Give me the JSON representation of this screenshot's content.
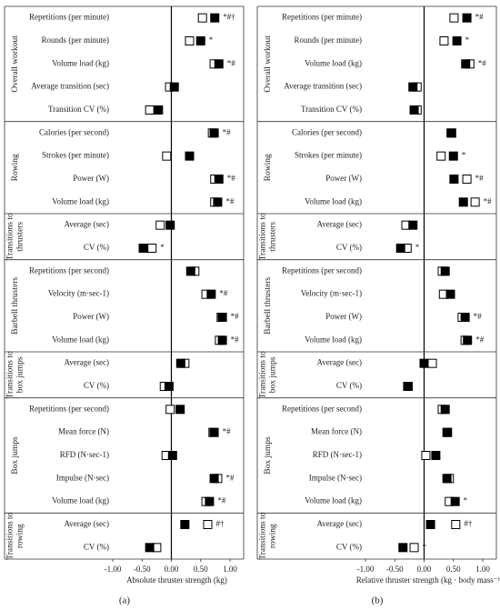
{
  "charts": [
    {
      "type": "dot",
      "panel_label": "(a)",
      "xlabel": "Absolute thruster strength (kg)",
      "xlim": [
        -1,
        1
      ],
      "xticks": [
        {
          "value": -1,
          "label": "-1.00"
        },
        {
          "value": -0.5,
          "label": "-0.50"
        },
        {
          "value": 0,
          "label": "0.00"
        },
        {
          "value": 0.5,
          "label": "0.50"
        },
        {
          "value": 1,
          "label": "1.00"
        }
      ],
      "groups": [
        {
          "label_lines": [
            "Overall workout"
          ],
          "categories": [
            "Repetitions (per minute)",
            "Rounds (per minute)",
            "Volume load (kg)",
            "Average transition (sec)",
            "Transition CV (%)"
          ]
        },
        {
          "label_lines": [
            "Rowing"
          ],
          "categories": [
            "Calories (per second)",
            "Strokes (per minute)",
            "Power (W)",
            "Volume load (kg)"
          ]
        },
        {
          "label_lines": [
            "Transitions to",
            "thrusters"
          ],
          "categories": [
            "Average (sec)",
            "CV (%)"
          ]
        },
        {
          "label_lines": [
            "Barbell thrusters"
          ],
          "categories": [
            "Repetitions (per second)",
            "Velocity (m·sec-1)",
            "Power (W)",
            "Volume load (kg)"
          ]
        },
        {
          "label_lines": [
            "Transitions to",
            "box jumps"
          ],
          "categories": [
            "Average (sec)",
            "CV (%)"
          ]
        },
        {
          "label_lines": [
            "Box jumps"
          ],
          "categories": [
            "Repetitions (per second)",
            "Mean force (N)",
            "RFD (N·sec-1)",
            "Impulse (N·sec)",
            "Volume load (kg)"
          ]
        },
        {
          "label_lines": [
            "Transitions to",
            "rowing"
          ],
          "categories": [
            "Average (sec)",
            "CV (%)"
          ]
        }
      ],
      "series": [
        {
          "color": "#000000",
          "filled": false,
          "values": [
            0.53,
            0.31,
            0.73,
            -0.03,
            -0.37,
            0.7,
            -0.08,
            0.74,
            0.74,
            -0.19,
            -0.33,
            0.4,
            0.59,
            0.85,
            0.82,
            0.23,
            -0.12,
            -0.02,
            0.71,
            -0.09,
            0.79,
            0.59,
            0.62,
            -0.25
          ]
        },
        {
          "color": "#000000",
          "filled": true,
          "values": [
            0.74,
            0.5,
            0.81,
            0.05,
            -0.22,
            0.73,
            0.31,
            0.81,
            0.79,
            -0.02,
            -0.48,
            0.33,
            0.68,
            0.87,
            0.87,
            0.16,
            -0.04,
            0.15,
            0.73,
            0.02,
            0.73,
            0.65,
            0.23,
            -0.37
          ]
        }
      ],
      "annotations": [
        "*#†",
        "*",
        "*#",
        null,
        null,
        "*#",
        null,
        "*#",
        "*#",
        null,
        "*",
        null,
        "*#",
        "*#",
        "*#",
        null,
        null,
        null,
        "*#",
        null,
        "*#",
        "*#",
        "#†",
        null
      ]
    },
    {
      "type": "dot",
      "panel_label": "(b)",
      "xlabel": "Relative thruster strength (kg · body mass⁻¹)",
      "xlim": [
        -1,
        1
      ],
      "xticks": [
        {
          "value": -1,
          "label": "-1.00"
        },
        {
          "value": -0.5,
          "label": "-0.50"
        },
        {
          "value": 0,
          "label": "0.00"
        },
        {
          "value": 0.5,
          "label": "0.50"
        },
        {
          "value": 1,
          "label": "1.00"
        }
      ],
      "groups": [
        {
          "label_lines": [
            "Overall workout"
          ],
          "categories": [
            "Repetitions (per minute)",
            "Rounds (per minute)",
            "Volume load (kg)",
            "Average transition (sec)",
            "Transition CV (%)"
          ]
        },
        {
          "label_lines": [
            "Rowing"
          ],
          "categories": [
            "Calories (per second)",
            "Strokes (per minute)",
            "Power (W)",
            "Volume load (kg)"
          ]
        },
        {
          "label_lines": [
            "Transitions to",
            "thrusters"
          ],
          "categories": [
            "Average (sec)",
            "CV (%)"
          ]
        },
        {
          "label_lines": [
            "Barbell thrusters"
          ],
          "categories": [
            "Repetitions (per second)",
            "Velocity (m·sec-1)",
            "Power (W)",
            "Volume load (kg)"
          ]
        },
        {
          "label_lines": [
            "Transitions to",
            "box jumps"
          ],
          "categories": [
            "Average (sec)",
            "CV (%)"
          ]
        },
        {
          "label_lines": [
            "Box jumps"
          ],
          "categories": [
            "Repetitions (per second)",
            "Mean force (N)",
            "RFD (N·sec-1)",
            "Impulse (N·sec)",
            "Volume load (kg)"
          ]
        },
        {
          "label_lines": [
            "Transitions to",
            "rowing"
          ],
          "categories": [
            "Average (sec)",
            "CV (%)"
          ]
        }
      ],
      "series": [
        {
          "color": "#000000",
          "filled": false,
          "values": [
            0.51,
            0.34,
            0.78,
            -0.12,
            -0.12,
            0.46,
            0.29,
            0.73,
            0.87,
            -0.31,
            -0.29,
            0.31,
            0.33,
            0.65,
            0.7,
            0.14,
            -0.27,
            0.31,
            0.39,
            0.03,
            0.43,
            0.43,
            0.54,
            -0.17
          ]
        },
        {
          "color": "#000000",
          "filled": true,
          "values": [
            0.73,
            0.56,
            0.71,
            -0.19,
            -0.17,
            0.47,
            0.5,
            0.51,
            0.67,
            -0.19,
            -0.4,
            0.36,
            0.45,
            0.7,
            0.74,
            0.0,
            -0.28,
            0.36,
            0.4,
            0.2,
            0.39,
            0.53,
            0.11,
            -0.36
          ]
        }
      ],
      "annotations": [
        "*#",
        "*",
        "*#",
        null,
        null,
        null,
        "*",
        "*#",
        "*#",
        null,
        "*",
        null,
        null,
        "*#",
        "*#",
        null,
        null,
        null,
        null,
        null,
        null,
        "*",
        "#†",
        "*"
      ]
    }
  ]
}
